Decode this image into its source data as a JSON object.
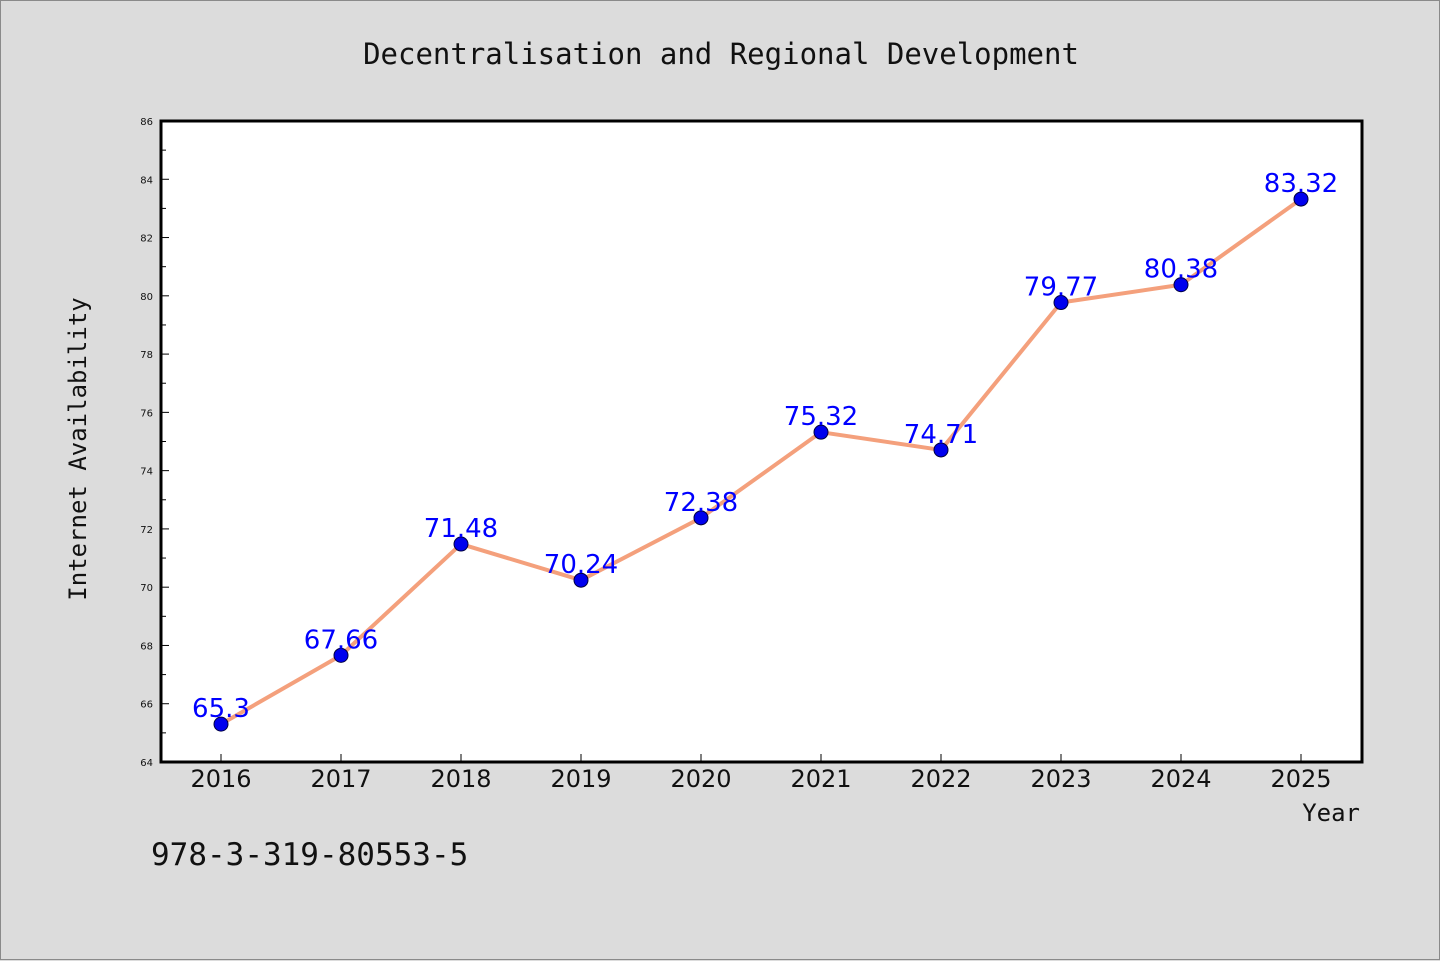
{
  "chart_data": {
    "type": "line",
    "title": "Decentralisation and Regional Development",
    "xlabel": "Year",
    "ylabel": "Internet Availability",
    "x": [
      "2016",
      "2017",
      "2018",
      "2019",
      "2020",
      "2021",
      "2022",
      "2023",
      "2024",
      "2025"
    ],
    "series": [
      {
        "values": [
          65.3,
          67.66,
          71.48,
          70.24,
          72.38,
          75.32,
          74.71,
          79.77,
          80.38,
          83.32
        ],
        "data_labels": [
          "65.3",
          "67.66",
          "71.48",
          "70.24",
          "72.38",
          "75.32",
          "74.71",
          "79.77",
          "80.38",
          "83.32"
        ]
      }
    ],
    "ylim": [
      64,
      86
    ],
    "yticks": [
      "64",
      "66",
      "68",
      "70",
      "72",
      "74",
      "76",
      "78",
      "80",
      "82",
      "84",
      "86"
    ],
    "grid": false,
    "line_color": "#f4a07c",
    "marker_color": "#0000ee",
    "label_color": "#0000ff"
  },
  "caption": "978-3-319-80553-5"
}
